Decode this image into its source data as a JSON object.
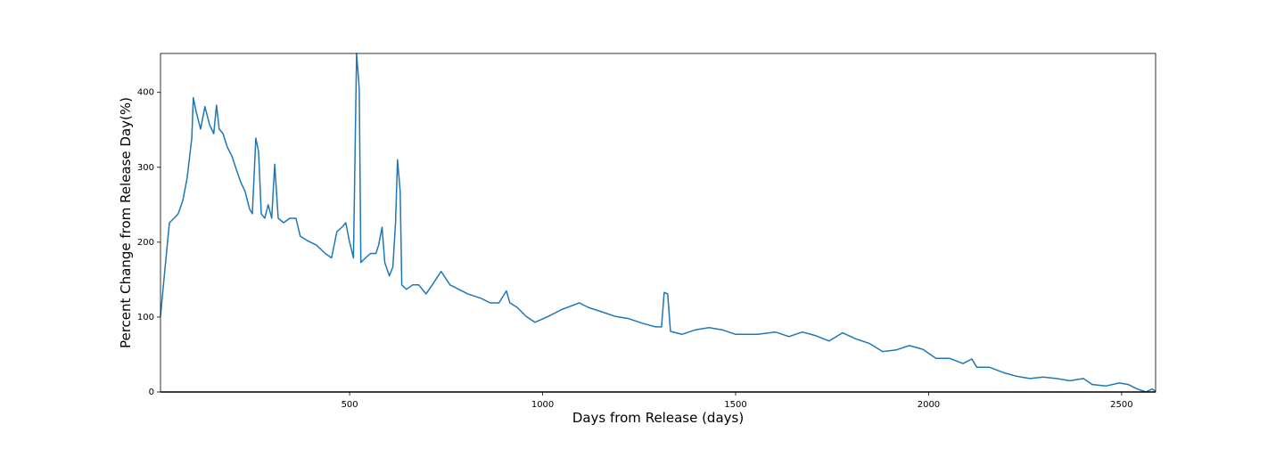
{
  "chart_data": {
    "type": "line",
    "xlabel": "Days from Release (days)",
    "ylabel": "Percent Change from Release Day(%)",
    "color": "#1f77b4",
    "xlim": [
      10,
      2588
    ],
    "ylim": [
      0,
      452
    ],
    "xticks": [
      500,
      1000,
      1500,
      2000,
      2500
    ],
    "yticks": [
      0,
      100,
      200,
      300,
      400
    ],
    "x": [
      10,
      22,
      33,
      45,
      56,
      68,
      79,
      91,
      95,
      102,
      114,
      125,
      137,
      148,
      155,
      162,
      172,
      183,
      195,
      206,
      218,
      229,
      241,
      248,
      257,
      264,
      271,
      280,
      289,
      298,
      306,
      315,
      329,
      345,
      361,
      372,
      391,
      414,
      437,
      453,
      467,
      480,
      490,
      499,
      510,
      518,
      525,
      529,
      541,
      554,
      568,
      575,
      584,
      591,
      603,
      612,
      619,
      624,
      631,
      635,
      647,
      663,
      679,
      698,
      714,
      737,
      760,
      783,
      806,
      841,
      864,
      887,
      906,
      915,
      934,
      957,
      980,
      1015,
      1049,
      1095,
      1118,
      1153,
      1188,
      1222,
      1257,
      1292,
      1308,
      1315,
      1324,
      1331,
      1361,
      1396,
      1431,
      1465,
      1500,
      1557,
      1603,
      1638,
      1673,
      1708,
      1742,
      1777,
      1811,
      1846,
      1881,
      1915,
      1950,
      1985,
      2019,
      2054,
      2089,
      2112,
      2125,
      2158,
      2193,
      2227,
      2262,
      2297,
      2331,
      2366,
      2401,
      2424,
      2459,
      2494,
      2517,
      2540,
      2563,
      2579,
      2588
    ],
    "values": [
      101,
      167,
      226,
      232,
      238,
      256,
      286,
      339,
      393,
      375,
      351,
      381,
      357,
      345,
      383,
      351,
      345,
      327,
      315,
      298,
      280,
      268,
      244,
      238,
      339,
      321,
      238,
      232,
      250,
      232,
      304,
      232,
      226,
      232,
      232,
      208,
      202,
      196,
      185,
      179,
      214,
      220,
      226,
      202,
      179,
      452,
      405,
      173,
      179,
      185,
      185,
      196,
      220,
      173,
      155,
      167,
      226,
      310,
      268,
      143,
      137,
      143,
      143,
      131,
      143,
      161,
      143,
      137,
      131,
      125,
      119,
      119,
      135,
      119,
      113,
      101,
      93,
      101,
      110,
      119,
      113,
      107,
      101,
      98,
      92,
      87,
      87,
      133,
      131,
      81,
      77,
      83,
      86,
      83,
      77,
      77,
      80,
      74,
      80,
      75,
      68,
      79,
      71,
      65,
      54,
      56,
      62,
      57,
      45,
      45,
      38,
      44,
      33,
      33,
      26,
      21,
      18,
      20,
      18,
      15,
      18,
      10,
      8,
      12,
      10,
      4,
      0,
      4,
      1
    ]
  }
}
